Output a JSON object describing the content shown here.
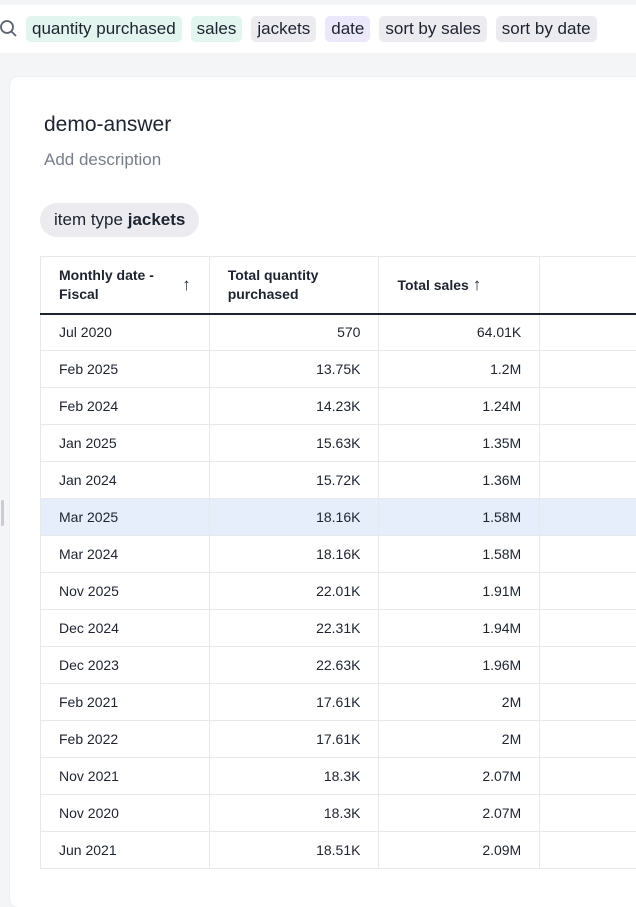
{
  "search": {
    "chips": [
      {
        "label": "quantity purchased",
        "color": "#e2f5ee"
      },
      {
        "label": "sales",
        "color": "#e2f5ee"
      },
      {
        "label": "jackets",
        "color": "#ebebf0"
      },
      {
        "label": "date",
        "color": "#ece8fc"
      },
      {
        "label": "sort by sales",
        "color": "#ebebf0"
      },
      {
        "label": "sort by date",
        "color": "#ebebf0"
      }
    ]
  },
  "answer": {
    "title": "demo-answer",
    "description_placeholder": "Add description",
    "filter": {
      "label": "item type",
      "value": "jackets"
    }
  },
  "table": {
    "columns": [
      {
        "label": "Monthly date - Fiscal",
        "sort": "asc"
      },
      {
        "label": "Total quantity purchased"
      },
      {
        "label": "Total sales",
        "sort": "asc"
      },
      {
        "label": ""
      }
    ],
    "rows": [
      [
        "Jul 2020",
        "570",
        "64.01K"
      ],
      [
        "Feb 2025",
        "13.75K",
        "1.2M"
      ],
      [
        "Feb 2024",
        "14.23K",
        "1.24M"
      ],
      [
        "Jan 2025",
        "15.63K",
        "1.35M"
      ],
      [
        "Jan 2024",
        "15.72K",
        "1.36M"
      ],
      [
        "Mar 2025",
        "18.16K",
        "1.58M"
      ],
      [
        "Mar 2024",
        "18.16K",
        "1.58M"
      ],
      [
        "Nov 2025",
        "22.01K",
        "1.91M"
      ],
      [
        "Dec 2024",
        "22.31K",
        "1.94M"
      ],
      [
        "Dec 2023",
        "22.63K",
        "1.96M"
      ],
      [
        "Feb 2021",
        "17.61K",
        "2M"
      ],
      [
        "Feb 2022",
        "17.61K",
        "2M"
      ],
      [
        "Nov 2021",
        "18.3K",
        "2.07M"
      ],
      [
        "Nov 2020",
        "18.3K",
        "2.07M"
      ],
      [
        "Jun 2021",
        "18.51K",
        "2.09M"
      ]
    ],
    "selected_row": 5,
    "sort_arrow": "↑"
  }
}
